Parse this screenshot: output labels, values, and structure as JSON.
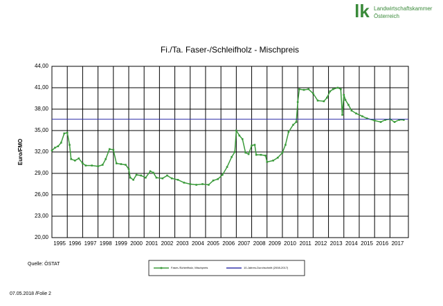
{
  "chart_data": {
    "type": "line",
    "title": "Fi./Ta. Faser-/Schleifholz - Mischpreis",
    "y_label": "Euro/FMO",
    "source": "Quelle: ÖSTAT",
    "footer": "07.05.2018 /Folie 2",
    "logo": {
      "mark": "lk",
      "line1": "Landwirtschaftskammer",
      "line2": "Österreich"
    },
    "xlim": [
      1995,
      2018.2
    ],
    "xticks": [
      {
        "value": 1995,
        "label": "1995"
      },
      {
        "value": 1996,
        "label": "1996"
      },
      {
        "value": 1997,
        "label": "1997"
      },
      {
        "value": 1998,
        "label": "1998"
      },
      {
        "value": 1999,
        "label": "1999"
      },
      {
        "value": 2000,
        "label": "2000"
      },
      {
        "value": 2001,
        "label": "2001"
      },
      {
        "value": 2002,
        "label": "2002"
      },
      {
        "value": 2003,
        "label": "2003"
      },
      {
        "value": 2004,
        "label": "2004"
      },
      {
        "value": 2005,
        "label": "2005"
      },
      {
        "value": 2006,
        "label": "2006"
      },
      {
        "value": 2007,
        "label": "2007"
      },
      {
        "value": 2008,
        "label": "2008"
      },
      {
        "value": 2009,
        "label": "2009"
      },
      {
        "value": 2010,
        "label": "2010"
      },
      {
        "value": 2011,
        "label": "2011"
      },
      {
        "value": 2012,
        "label": "2012"
      },
      {
        "value": 2013,
        "label": "2013"
      },
      {
        "value": 2014,
        "label": "2014"
      },
      {
        "value": 2015,
        "label": "2015"
      },
      {
        "value": 2016,
        "label": "2016"
      },
      {
        "value": 2017,
        "label": "2017"
      }
    ],
    "ylim": [
      20,
      44
    ],
    "yticks": [
      {
        "value": 20,
        "label": "20,00"
      },
      {
        "value": 23,
        "label": "23,00"
      },
      {
        "value": 26,
        "label": "26,00"
      },
      {
        "value": 29,
        "label": "29,00"
      },
      {
        "value": 32,
        "label": "32,00"
      },
      {
        "value": 35,
        "label": "35,00"
      },
      {
        "value": 38,
        "label": "38,00"
      },
      {
        "value": 41,
        "label": "41,00"
      },
      {
        "value": 44,
        "label": "44,00"
      }
    ],
    "grid": true,
    "series": [
      {
        "name": "Faser-/Schleifholz, Mischpreis",
        "color": "#3a9a3a",
        "markers": true,
        "x": [
          1995.0,
          1995.2,
          1995.4,
          1995.6,
          1995.8,
          1996.0,
          1996.15,
          1996.25,
          1996.5,
          1996.75,
          1997.0,
          1997.2,
          1997.6,
          1998.0,
          1998.3,
          1998.5,
          1998.75,
          1999.0,
          1999.2,
          1999.5,
          1999.8,
          2000.0,
          2000.1,
          2000.3,
          2000.5,
          2000.8,
          2001.1,
          2001.4,
          2001.6,
          2001.8,
          2002.2,
          2002.5,
          2002.8,
          2003.2,
          2003.6,
          2004.0,
          2004.4,
          2004.8,
          2005.2,
          2005.5,
          2005.8,
          2006.1,
          2006.4,
          2006.7,
          2006.9,
          2007.0,
          2007.2,
          2007.4,
          2007.6,
          2007.8,
          2008.0,
          2008.2,
          2008.3,
          2008.6,
          2008.9,
          2009.0,
          2009.4,
          2009.7,
          2010.0,
          2010.2,
          2010.4,
          2010.7,
          2010.9,
          2011.0,
          2011.1,
          2011.4,
          2011.7,
          2012.0,
          2012.3,
          2012.7,
          2012.9,
          2013.1,
          2013.3,
          2013.6,
          2013.8,
          2013.9,
          2014.0,
          2014.1,
          2014.3,
          2014.5,
          2014.8,
          2015.2,
          2015.5,
          2016.0,
          2016.4,
          2016.7,
          2017.0,
          2017.3,
          2017.6,
          2017.9
        ],
        "values": [
          32.2,
          32.6,
          32.8,
          33.3,
          34.6,
          34.7,
          33.0,
          31.0,
          30.8,
          31.1,
          30.4,
          30.1,
          30.1,
          30.0,
          30.2,
          31.0,
          32.4,
          32.3,
          30.4,
          30.3,
          30.2,
          29.6,
          28.4,
          28.1,
          28.8,
          28.7,
          28.4,
          29.3,
          29.1,
          28.4,
          28.3,
          28.7,
          28.3,
          28.1,
          27.7,
          27.5,
          27.4,
          27.5,
          27.4,
          28.0,
          28.2,
          28.8,
          29.9,
          31.3,
          32.0,
          35.0,
          34.3,
          33.8,
          31.9,
          31.7,
          32.9,
          33.0,
          31.6,
          31.6,
          31.5,
          30.6,
          30.8,
          31.2,
          31.9,
          33.0,
          34.8,
          35.8,
          36.2,
          39.0,
          40.8,
          40.7,
          40.8,
          40.2,
          39.2,
          39.1,
          39.6,
          40.5,
          40.8,
          41.0,
          40.8,
          37.2,
          40.0,
          39.3,
          38.6,
          37.8,
          37.4,
          37.0,
          36.7,
          36.4,
          36.2,
          36.5,
          36.6,
          36.2,
          36.5,
          36.5
        ]
      },
      {
        "name": "10-Jahres-Durchschnitt (2008-2017)",
        "color": "#3333aa",
        "markers": false,
        "x": [
          1995,
          2018.2
        ],
        "values": [
          36.6,
          36.6
        ]
      }
    ]
  }
}
